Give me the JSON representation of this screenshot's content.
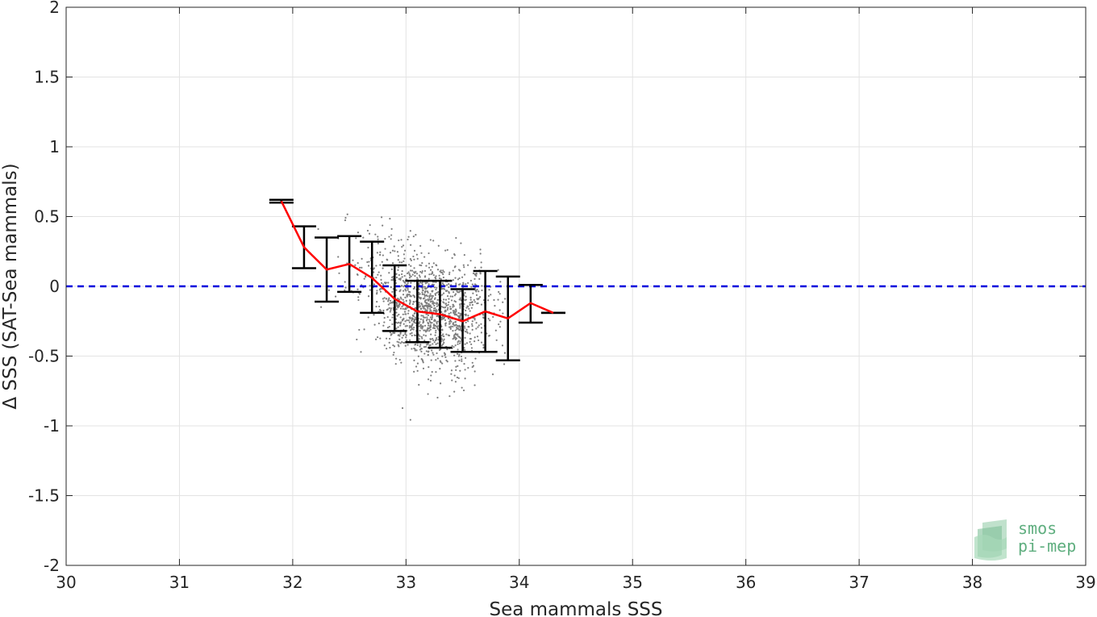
{
  "chart_data": {
    "type": "scatter",
    "xlabel": "Sea mammals SSS",
    "ylabel": "Δ SSS (SAT-Sea mammals)",
    "xlim": [
      30,
      39
    ],
    "ylim": [
      -2,
      2
    ],
    "xticks": [
      "30",
      "31",
      "32",
      "33",
      "34",
      "35",
      "36",
      "37",
      "38",
      "39"
    ],
    "yticks": [
      "-2",
      "-1.5",
      "-1",
      "-0.5",
      "0",
      "0.5",
      "1",
      "1.5",
      "2"
    ],
    "grid": true,
    "reference_line": {
      "y": 0,
      "style": "dashed",
      "color": "#0000dd"
    },
    "scatter_cloud": {
      "color": "#7f7f7f",
      "approx_count": 1400,
      "x_range": [
        32.2,
        33.9
      ],
      "y_range": [
        -1.15,
        0.7
      ]
    },
    "mean_line": {
      "color": "#ff0000",
      "x": [
        31.9,
        32.1,
        32.3,
        32.5,
        32.7,
        32.9,
        33.1,
        33.3,
        33.5,
        33.7,
        33.9,
        34.1,
        34.3
      ],
      "y": [
        0.61,
        0.28,
        0.12,
        0.16,
        0.06,
        -0.09,
        -0.18,
        -0.2,
        -0.25,
        -0.18,
        -0.23,
        -0.12,
        -0.19
      ]
    },
    "error_bars": {
      "color": "#000000",
      "x": [
        31.9,
        32.1,
        32.3,
        32.5,
        32.7,
        32.9,
        33.1,
        33.3,
        33.5,
        33.7,
        33.9,
        34.1,
        34.3
      ],
      "low": [
        0.6,
        0.13,
        -0.11,
        -0.04,
        -0.19,
        -0.32,
        -0.4,
        -0.44,
        -0.47,
        -0.47,
        -0.53,
        -0.26,
        -0.19
      ],
      "high": [
        0.62,
        0.43,
        0.35,
        0.36,
        0.32,
        0.15,
        0.04,
        0.04,
        -0.02,
        0.11,
        0.07,
        0.01,
        -0.19
      ]
    }
  },
  "logo": {
    "line1": "smos",
    "line2": "pi-mep",
    "color": "#5fae7f"
  }
}
